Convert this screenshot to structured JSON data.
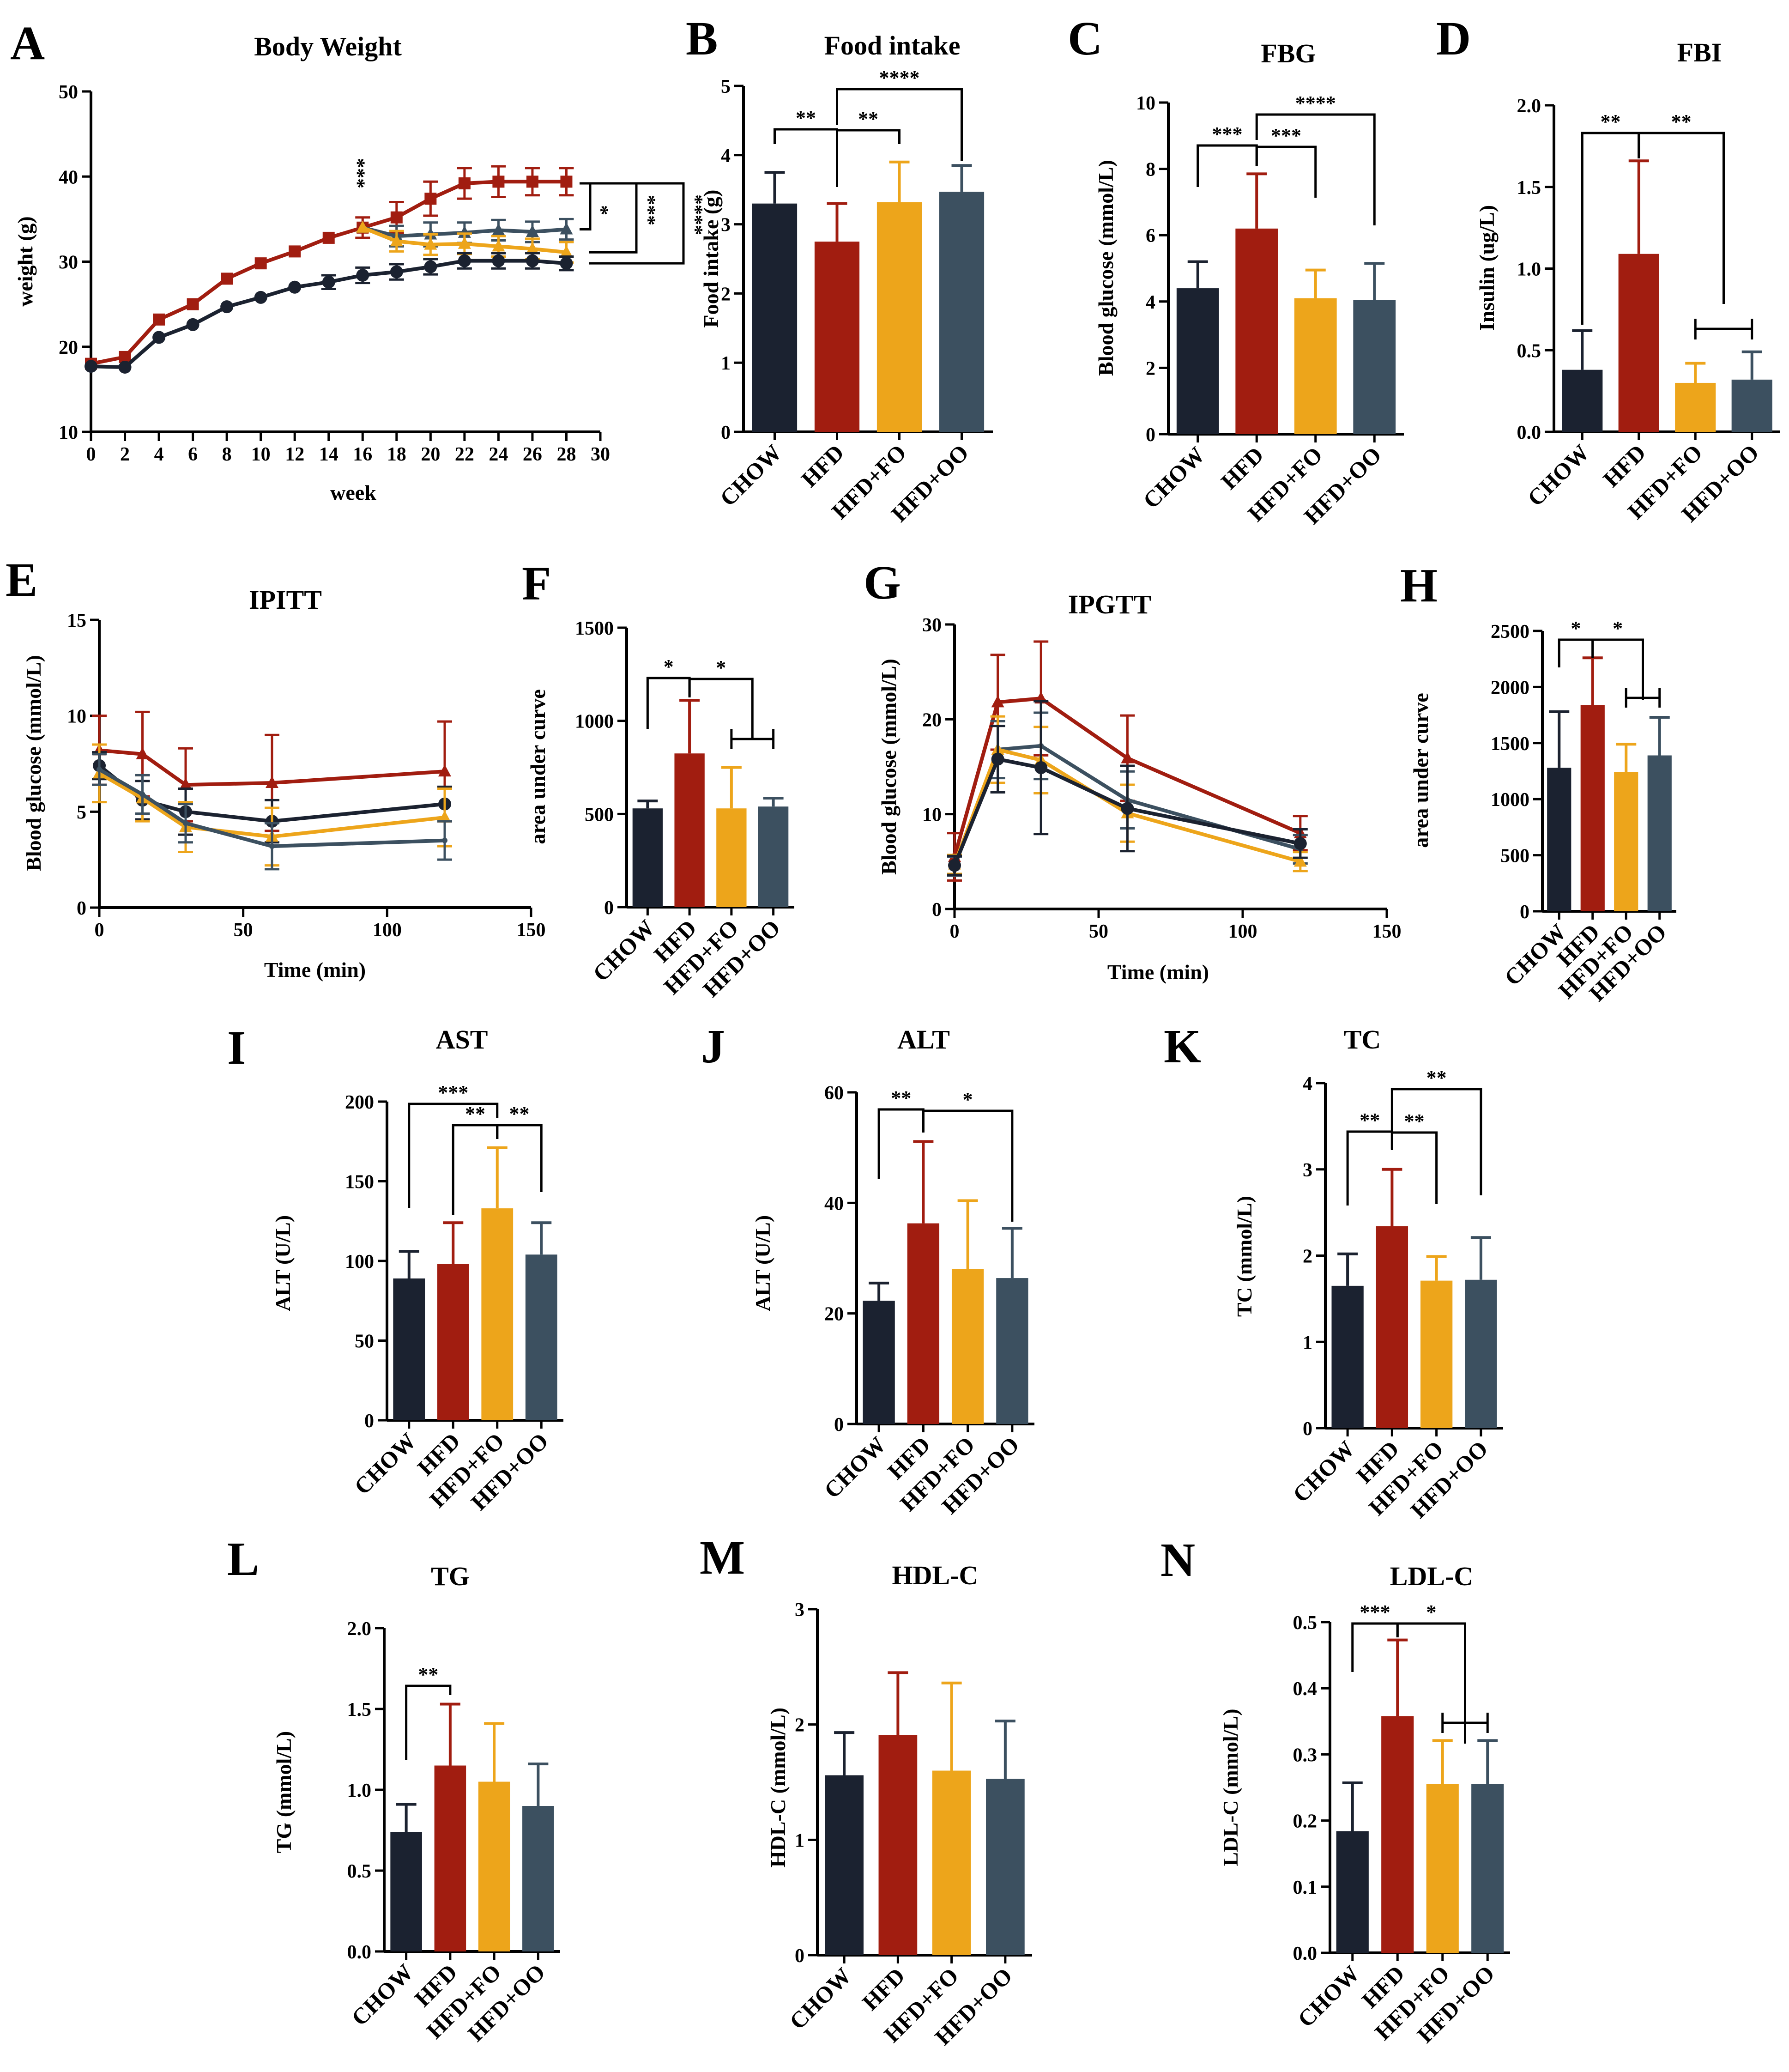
{
  "colors": {
    "CHOW": "#1b2230",
    "HFD": "#a11d10",
    "HFD+FO": "#eda51b",
    "HFD+OO": "#3c5060"
  },
  "chart_data": [
    {
      "id": "A",
      "type": "line",
      "letter": "A",
      "title": "Body Weight",
      "xlabel": "week",
      "ylabel": "weight (g)",
      "xlim": [
        0,
        30
      ],
      "ylim": [
        10,
        50
      ],
      "xticks": [
        0,
        2,
        4,
        6,
        8,
        10,
        12,
        14,
        16,
        18,
        20,
        22,
        24,
        26,
        28,
        30
      ],
      "yticks": [
        10,
        20,
        30,
        40,
        50
      ],
      "series": [
        {
          "name": "HFD",
          "x": [
            0,
            2,
            4,
            6,
            8,
            10,
            12,
            14,
            16,
            18,
            20,
            22,
            24,
            26,
            28
          ],
          "values": [
            18,
            18.8,
            23.2,
            25,
            28,
            29.8,
            31.2,
            32.8,
            34,
            35.2,
            37.4,
            39.2,
            39.4,
            39.4,
            39.4
          ],
          "err": [
            0,
            0,
            0,
            0,
            0,
            0,
            0,
            0,
            1.2,
            1.8,
            2,
            1.8,
            1.8,
            1.6,
            1.6
          ],
          "marker": "square"
        },
        {
          "name": "HFD+OO",
          "x": [
            16,
            18,
            20,
            22,
            24,
            26,
            28
          ],
          "values": [
            34,
            33,
            33.2,
            33.4,
            33.7,
            33.5,
            33.8
          ],
          "err": [
            0,
            1.2,
            1.4,
            1.2,
            1.2,
            1.2,
            1.2
          ],
          "marker": "triangle"
        },
        {
          "name": "HFD+FO",
          "x": [
            16,
            18,
            20,
            22,
            24,
            26,
            28
          ],
          "values": [
            34,
            32.4,
            32,
            32.1,
            31.8,
            31.5,
            31.1
          ],
          "err": [
            0,
            1.2,
            1.2,
            1.2,
            1.2,
            1.2,
            1.2
          ],
          "marker": "triangle"
        },
        {
          "name": "CHOW",
          "x": [
            0,
            2,
            4,
            6,
            8,
            10,
            12,
            14,
            16,
            18,
            20,
            22,
            24,
            26,
            28
          ],
          "values": [
            17.7,
            17.6,
            21.1,
            22.6,
            24.7,
            25.8,
            27,
            27.6,
            28.4,
            28.8,
            29.4,
            30.1,
            30.1,
            30.1,
            29.8
          ],
          "err": [
            0,
            0,
            0,
            0,
            0,
            0,
            0,
            0.8,
            0.9,
            0.9,
            0.9,
            0.9,
            0.9,
            0.9,
            0.8
          ],
          "marker": "circle"
        }
      ],
      "annotations": [
        {
          "at": "week 16",
          "label": "***"
        },
        {
          "group": "HFD vs HFD+OO",
          "label": "*"
        },
        {
          "group": "HFD vs HFD+FO",
          "label": "***"
        },
        {
          "group": "HFD vs CHOW",
          "label": "****"
        }
      ]
    },
    {
      "id": "B",
      "type": "bar",
      "letter": "B",
      "title": "Food intake",
      "ylabel": "Food intake (g)",
      "categories": [
        "CHOW",
        "HFD",
        "HFD+FO",
        "HFD+OO"
      ],
      "values": [
        3.3,
        2.75,
        3.32,
        3.47
      ],
      "errors": [
        0.45,
        0.55,
        0.58,
        0.38
      ],
      "ylim": [
        0,
        5
      ],
      "yticks": [
        0,
        1,
        2,
        3,
        4,
        5
      ],
      "annotations": [
        {
          "groups": [
            "CHOW",
            "HFD"
          ],
          "label": "**"
        },
        {
          "groups": [
            "HFD",
            "HFD+FO"
          ],
          "label": "**"
        },
        {
          "groups": [
            "HFD",
            "HFD+OO"
          ],
          "label": "****"
        }
      ]
    },
    {
      "id": "C",
      "type": "bar",
      "letter": "C",
      "title": "FBG",
      "ylabel": "Blood glucose (mmol/L)",
      "categories": [
        "CHOW",
        "HFD",
        "HFD+FO",
        "HFD+OO"
      ],
      "values": [
        4.4,
        6.2,
        4.1,
        4.05
      ],
      "errors": [
        0.8,
        1.65,
        0.85,
        1.1
      ],
      "ylim": [
        0,
        10
      ],
      "yticks": [
        0,
        2,
        4,
        6,
        8,
        10
      ],
      "annotations": [
        {
          "groups": [
            "CHOW",
            "HFD"
          ],
          "label": "***"
        },
        {
          "groups": [
            "HFD",
            "HFD+FO"
          ],
          "label": "***"
        },
        {
          "groups": [
            "HFD",
            "HFD+OO"
          ],
          "label": "****"
        }
      ]
    },
    {
      "id": "D",
      "type": "bar",
      "letter": "D",
      "title": "FBI",
      "ylabel": "Insulin (ug/L)",
      "categories": [
        "CHOW",
        "HFD",
        "HFD+FO",
        "HFD+OO"
      ],
      "values": [
        0.38,
        1.09,
        0.3,
        0.32
      ],
      "errors": [
        0.24,
        0.57,
        0.12,
        0.17
      ],
      "ylim": [
        0,
        2
      ],
      "yticks": [
        0.0,
        0.5,
        1.0,
        1.5,
        2.0
      ],
      "annotations": [
        {
          "groups": [
            "CHOW",
            "HFD"
          ],
          "label": "**"
        },
        {
          "groups": [
            "HFD",
            "HFD+FO/HFD+OO"
          ],
          "label": "**"
        }
      ]
    },
    {
      "id": "E",
      "type": "line",
      "letter": "E",
      "title": "IPITT",
      "xlabel": "Time (min)",
      "ylabel": "Blood glucose (mmol/L)",
      "xlim": [
        0,
        150
      ],
      "ylim": [
        0,
        15
      ],
      "xticks": [
        0,
        50,
        100,
        150
      ],
      "yticks": [
        0,
        5,
        10,
        15
      ],
      "series": [
        {
          "name": "HFD",
          "x": [
            0,
            15,
            30,
            60,
            120
          ],
          "values": [
            8.2,
            8,
            6.4,
            6.5,
            7.1
          ],
          "err": [
            1.8,
            2.2,
            1.9,
            2.5,
            2.6
          ],
          "marker": "triangle"
        },
        {
          "name": "CHOW",
          "x": [
            0,
            15,
            30,
            60,
            120
          ],
          "values": [
            7.4,
            5.6,
            5,
            4.5,
            5.4
          ],
          "err": [
            0.7,
            1,
            1.2,
            1.1,
            0.9
          ],
          "marker": "circle"
        },
        {
          "name": "HFD+FO",
          "x": [
            0,
            15,
            30,
            60,
            120
          ],
          "values": [
            7,
            5.7,
            4.2,
            3.7,
            4.7
          ],
          "err": [
            1.5,
            1.2,
            1.3,
            1.5,
            1.5
          ],
          "marker": "triangle"
        },
        {
          "name": "HFD+OO",
          "x": [
            0,
            15,
            30,
            60,
            120
          ],
          "values": [
            7.2,
            5.9,
            4.4,
            3.2,
            3.5
          ],
          "err": [
            0.8,
            1,
            1,
            1.2,
            1
          ]
        }
      ]
    },
    {
      "id": "F",
      "type": "bar",
      "letter": "F",
      "title": "",
      "ylabel": "area under curve",
      "categories": [
        "CHOW",
        "HFD",
        "HFD+FO",
        "HFD+OO"
      ],
      "values": [
        530,
        825,
        530,
        540
      ],
      "errors": [
        40,
        285,
        220,
        45
      ],
      "ylim": [
        0,
        1500
      ],
      "yticks": [
        0,
        500,
        1000,
        1500
      ],
      "annotations": [
        {
          "groups": [
            "CHOW",
            "HFD"
          ],
          "label": "*"
        },
        {
          "groups": [
            "HFD",
            "HFD+FO/HFD+OO"
          ],
          "label": "*"
        }
      ]
    },
    {
      "id": "G",
      "type": "line",
      "letter": "G",
      "title": "IPGTT",
      "xlabel": "Time (min)",
      "ylabel": "Blood glucose (mmol/L)",
      "xlim": [
        0,
        150
      ],
      "ylim": [
        0,
        30
      ],
      "xticks": [
        0,
        50,
        100,
        150
      ],
      "yticks": [
        0,
        10,
        20,
        30
      ],
      "series": [
        {
          "name": "HFD",
          "x": [
            0,
            15,
            30,
            60,
            120
          ],
          "values": [
            5.5,
            21.8,
            22.2,
            15.9,
            8
          ],
          "err": [
            2.5,
            5,
            6,
            4.5,
            1.8
          ],
          "marker": "triangle"
        },
        {
          "name": "HFD+OO",
          "x": [
            0,
            15,
            30,
            60,
            120
          ],
          "values": [
            4.5,
            16.8,
            17.2,
            11.5,
            6.3
          ],
          "err": [
            1,
            3,
            3.5,
            3,
            1.5
          ]
        },
        {
          "name": "HFD+FO",
          "x": [
            0,
            15,
            30,
            60,
            120
          ],
          "values": [
            4.7,
            16.8,
            15.7,
            10.1,
            5
          ],
          "err": [
            1,
            3.5,
            3.5,
            3,
            1
          ],
          "marker": "triangle"
        },
        {
          "name": "CHOW",
          "x": [
            0,
            15,
            30,
            60,
            120
          ],
          "values": [
            4.6,
            15.8,
            14.9,
            10.6,
            6.9
          ],
          "err": [
            1,
            3.5,
            7,
            4.5,
            1.5
          ],
          "marker": "circle"
        }
      ]
    },
    {
      "id": "H",
      "type": "bar",
      "letter": "H",
      "title": "",
      "ylabel": "area under curve",
      "categories": [
        "CHOW",
        "HFD",
        "HFD+FO",
        "HFD+OO"
      ],
      "values": [
        1280,
        1840,
        1240,
        1390
      ],
      "errors": [
        500,
        420,
        250,
        340
      ],
      "ylim": [
        0,
        2500
      ],
      "yticks": [
        0,
        500,
        1000,
        1500,
        2000,
        2500
      ],
      "annotations": [
        {
          "groups": [
            "CHOW",
            "HFD"
          ],
          "label": "*"
        },
        {
          "groups": [
            "HFD",
            "HFD+FO/HFD+OO"
          ],
          "label": "*"
        }
      ]
    },
    {
      "id": "I",
      "type": "bar",
      "letter": "I",
      "title": "AST",
      "ylabel": "ALT (U/L)",
      "categories": [
        "CHOW",
        "HFD",
        "HFD+FO",
        "HFD+OO"
      ],
      "values": [
        89,
        98,
        133,
        104
      ],
      "errors": [
        17,
        26,
        38,
        20
      ],
      "ylim": [
        0,
        200
      ],
      "yticks": [
        0,
        50,
        100,
        150,
        200
      ],
      "annotations": [
        {
          "groups": [
            "CHOW",
            "HFD+FO"
          ],
          "label": "***"
        },
        {
          "groups": [
            "HFD",
            "HFD+FO"
          ],
          "label": "**"
        },
        {
          "groups": [
            "HFD+FO",
            "HFD+OO"
          ],
          "label": "**"
        }
      ]
    },
    {
      "id": "J",
      "type": "bar",
      "letter": "J",
      "title": "ALT",
      "ylabel": "ALT (U/L)",
      "categories": [
        "CHOW",
        "HFD",
        "HFD+FO",
        "HFD+OO"
      ],
      "values": [
        22.3,
        36.3,
        28,
        26.4
      ],
      "errors": [
        3.2,
        14.8,
        12.4,
        9
      ],
      "ylim": [
        0,
        60
      ],
      "yticks": [
        0,
        20,
        40,
        60
      ],
      "annotations": [
        {
          "groups": [
            "CHOW",
            "HFD"
          ],
          "label": "**"
        },
        {
          "groups": [
            "HFD",
            "HFD+OO"
          ],
          "label": "*"
        }
      ]
    },
    {
      "id": "K",
      "type": "bar",
      "letter": "K",
      "title": "TC",
      "ylabel": "TC (mmol/L)",
      "categories": [
        "CHOW",
        "HFD",
        "HFD+FO",
        "HFD+OO"
      ],
      "values": [
        1.65,
        2.34,
        1.71,
        1.72
      ],
      "errors": [
        0.37,
        0.66,
        0.28,
        0.49
      ],
      "ylim": [
        0,
        4
      ],
      "yticks": [
        0,
        1,
        2,
        3,
        4
      ],
      "annotations": [
        {
          "groups": [
            "CHOW",
            "HFD"
          ],
          "label": "**"
        },
        {
          "groups": [
            "HFD",
            "HFD+FO"
          ],
          "label": "**"
        },
        {
          "groups": [
            "HFD",
            "HFD+OO"
          ],
          "label": "**"
        }
      ]
    },
    {
      "id": "L",
      "type": "bar",
      "letter": "L",
      "title": "TG",
      "ylabel": "TG (mmol/L)",
      "categories": [
        "CHOW",
        "HFD",
        "HFD+FO",
        "HFD+OO"
      ],
      "values": [
        0.74,
        1.15,
        1.05,
        0.9
      ],
      "errors": [
        0.17,
        0.38,
        0.36,
        0.26
      ],
      "ylim": [
        0,
        2
      ],
      "yticks": [
        0.0,
        0.5,
        1.0,
        1.5,
        2.0
      ],
      "annotations": [
        {
          "groups": [
            "CHOW",
            "HFD"
          ],
          "label": "**"
        }
      ]
    },
    {
      "id": "M",
      "type": "bar",
      "letter": "M",
      "title": "HDL-C",
      "ylabel": "HDL-C (mmol/L)",
      "categories": [
        "CHOW",
        "HFD",
        "HFD+FO",
        "HFD+OO"
      ],
      "values": [
        1.56,
        1.91,
        1.6,
        1.53
      ],
      "errors": [
        0.37,
        0.54,
        0.76,
        0.5
      ],
      "ylim": [
        0,
        3
      ],
      "yticks": [
        0,
        1,
        2,
        3
      ],
      "annotations": []
    },
    {
      "id": "N",
      "type": "bar",
      "letter": "N",
      "title": "LDL-C",
      "ylabel": "LDL-C (mmol/L)",
      "categories": [
        "CHOW",
        "HFD",
        "HFD+FO",
        "HFD+OO"
      ],
      "values": [
        0.184,
        0.358,
        0.255,
        0.255
      ],
      "errors": [
        0.073,
        0.115,
        0.066,
        0.066
      ],
      "ylim": [
        0,
        0.5
      ],
      "yticks": [
        0.0,
        0.1,
        0.2,
        0.3,
        0.4,
        0.5
      ],
      "annotations": [
        {
          "groups": [
            "CHOW",
            "HFD"
          ],
          "label": "***"
        },
        {
          "groups": [
            "HFD",
            "HFD+FO/HFD+OO"
          ],
          "label": "*"
        }
      ]
    }
  ]
}
